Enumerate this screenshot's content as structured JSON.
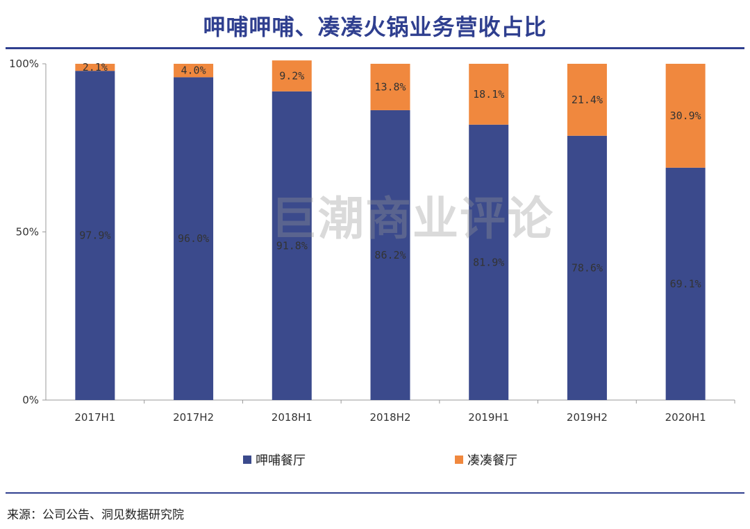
{
  "title": "呷哺呷哺、凑凑火锅业务营收占比",
  "watermark": "巨潮商业评论",
  "source": "来源：公司公告、洞见数据研究院",
  "colors": {
    "series1": "#3b4a8c",
    "series2": "#f0883e",
    "title": "#2f3f8f"
  },
  "chart_data": {
    "type": "bar",
    "stacked": true,
    "categories": [
      "2017H1",
      "2017H2",
      "2018H1",
      "2018H2",
      "2019H1",
      "2019H2",
      "2020H1"
    ],
    "series": [
      {
        "name": "呷哺餐厅",
        "values": [
          97.9,
          96.0,
          91.8,
          86.2,
          81.9,
          78.6,
          69.1
        ],
        "labels": [
          "97.9%",
          "96.0%",
          "91.8%",
          "86.2%",
          "81.9%",
          "78.6%",
          "69.1%"
        ]
      },
      {
        "name": "凑凑餐厅",
        "values": [
          2.1,
          4.0,
          9.2,
          13.8,
          18.1,
          21.4,
          30.9
        ],
        "labels": [
          "2.1%",
          "4.0%",
          "9.2%",
          "13.8%",
          "18.1%",
          "21.4%",
          "30.9%"
        ]
      }
    ],
    "ylim": [
      0,
      100
    ],
    "yticks": [
      "0%",
      "50%",
      "100%"
    ],
    "ytick_values": [
      0,
      50,
      100
    ],
    "legend_position": "bottom"
  }
}
